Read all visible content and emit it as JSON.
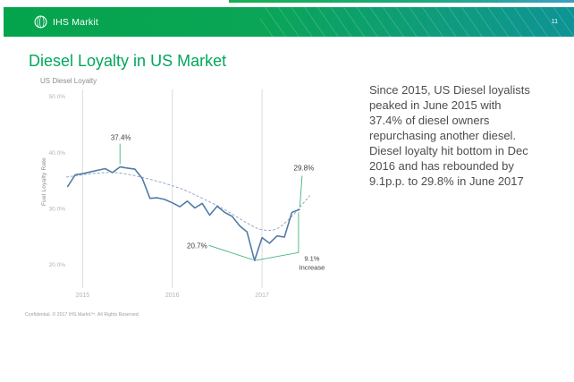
{
  "header": {
    "brand": "IHS Markit",
    "slide_number": "11",
    "bar_color_left": "#04a44c",
    "bar_color_right": "#0d9395"
  },
  "slide": {
    "title": "Diesel Loyalty in US Market",
    "title_color": "#00a75d",
    "body_text": "Since 2015, US Diesel loyalists peaked in June 2015 with 37.4% of diesel owners repurchasing another diesel.  Diesel loyalty hit bottom in Dec 2016 and has rebounded by 9.1p.p. to 29.8% in June 2017",
    "footer": "Confidential. © 2017 IHS Markit™. All Rights Reserved."
  },
  "chart_data": {
    "type": "line",
    "title": "US Diesel Loyalty",
    "ylabel": "Fuel Loyalty Rate",
    "x": [
      "2014-11",
      "2014-12",
      "2015-01",
      "2015-02",
      "2015-03",
      "2015-04",
      "2015-05",
      "2015-06",
      "2015-07",
      "2015-08",
      "2015-09",
      "2015-10",
      "2015-11",
      "2015-12",
      "2016-01",
      "2016-02",
      "2016-03",
      "2016-04",
      "2016-05",
      "2016-06",
      "2016-07",
      "2016-08",
      "2016-09",
      "2016-10",
      "2016-11",
      "2016-12",
      "2017-01",
      "2017-02",
      "2017-03",
      "2017-04",
      "2017-05",
      "2017-06"
    ],
    "values": [
      33.9,
      36.0,
      36.2,
      36.5,
      36.8,
      37.1,
      36.4,
      37.4,
      37.2,
      37.0,
      35.3,
      31.8,
      31.9,
      31.6,
      31.0,
      30.3,
      31.3,
      30.1,
      30.9,
      28.8,
      30.4,
      29.3,
      28.6,
      26.9,
      25.8,
      20.7,
      24.8,
      23.8,
      25.1,
      24.9,
      29.3,
      29.8
    ],
    "x_tick_labels": [
      "2015",
      "2016",
      "2017"
    ],
    "y_ticks": [
      {
        "label": "50.0%",
        "value": 50
      },
      {
        "label": "40.0%",
        "value": 40
      },
      {
        "label": "30.0%",
        "value": 30
      },
      {
        "label": "20.0%",
        "value": 20
      }
    ],
    "ylim": [
      15.8,
      51.2
    ],
    "grid": "vertical-year-lines-only",
    "legend": "none",
    "line_color": "#527ba6",
    "trend": {
      "style": "dashed",
      "color": "#93a9c8",
      "points": [
        [
          -0.2,
          35.6
        ],
        [
          4,
          36.3
        ],
        [
          7,
          36.3
        ],
        [
          11,
          35.2
        ],
        [
          15,
          33.6
        ],
        [
          18,
          31.8
        ],
        [
          21,
          29.8
        ],
        [
          24,
          27.4
        ],
        [
          26,
          26.2
        ],
        [
          28,
          26.4
        ],
        [
          30,
          28.6
        ],
        [
          31.5,
          30.9
        ],
        [
          32.4,
          32.3
        ]
      ]
    },
    "annotations": {
      "color": "#42b57c",
      "text_color": "#3f3f3f",
      "peak": {
        "label": "37.4%",
        "month": "2015-06"
      },
      "trough": {
        "label": "20.7%",
        "month": "2016-12"
      },
      "end": {
        "label": "29.8%",
        "month": "2017-06"
      },
      "increase": {
        "line1": "9.1%",
        "line2": "Increase"
      }
    }
  }
}
